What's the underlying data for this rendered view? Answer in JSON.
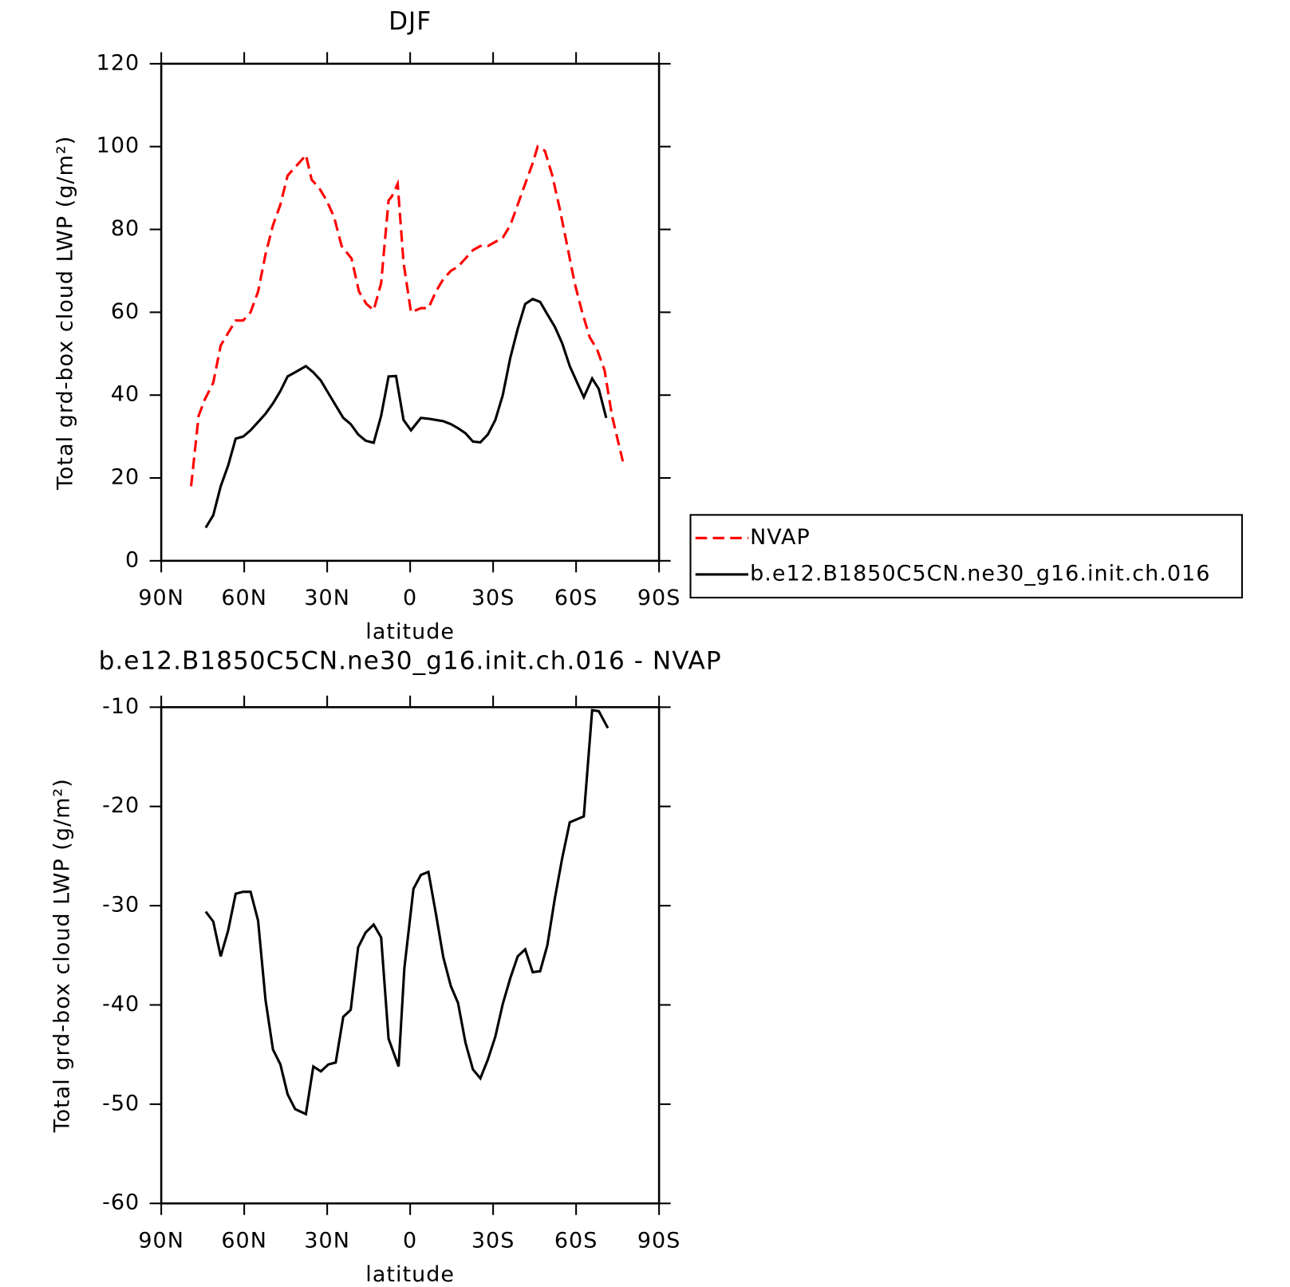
{
  "chart_data": [
    {
      "type": "line",
      "title": "DJF",
      "xlabel": "latitude",
      "ylabel": "Total grd-box cloud LWP (g/m²)",
      "xlim": [
        90,
        -90
      ],
      "xticks": [
        {
          "value": 90,
          "label": "90N"
        },
        {
          "value": 60,
          "label": "60N"
        },
        {
          "value": 30,
          "label": "30N"
        },
        0,
        {
          "value": -30,
          "label": "30S"
        },
        {
          "value": -60,
          "label": "60S"
        },
        {
          "value": -90,
          "label": "90S"
        }
      ],
      "ylim": [
        0,
        120
      ],
      "yticks": [
        0,
        20,
        40,
        60,
        80,
        100,
        120
      ],
      "legend": "right",
      "series": [
        {
          "name": "NVAP",
          "color": "#ff0000",
          "line_style": "dashed",
          "x": [
            79.2,
            76.5,
            74.2,
            71.2,
            68.5,
            65.8,
            63.1,
            60.4,
            57.7,
            55.0,
            52.3,
            49.6,
            46.9,
            44.3,
            41.6,
            38.9,
            37.7,
            35.6,
            32.9,
            30.2,
            27.5,
            24.8,
            21.2,
            18.5,
            15.8,
            13.2,
            10.5,
            7.8,
            6.6,
            4.5,
            2.4,
            -0.3,
            -3.9,
            -6.6,
            -9.3,
            -12.0,
            -14.7,
            -17.3,
            -20.0,
            -22.7,
            -25.4,
            -28.1,
            -30.8,
            -33.5,
            -36.2,
            -38.9,
            -41.6,
            -44.3,
            -46.1,
            -48.7,
            -51.4,
            -54.1,
            -56.8,
            -59.5,
            -62.2,
            -64.9,
            -67.6,
            -70.3,
            -73.0,
            -76.9
          ],
          "values": [
            18,
            35,
            39,
            43,
            52,
            55,
            58,
            58,
            60,
            65,
            74,
            81,
            86,
            93,
            95,
            97,
            98,
            92,
            90,
            87,
            83,
            76,
            73,
            65,
            62,
            60.5,
            67,
            87,
            88,
            91,
            72,
            60,
            61,
            61,
            65,
            68,
            70,
            71,
            73,
            75,
            76,
            76,
            77,
            78,
            81,
            86,
            91,
            96,
            100,
            99,
            93,
            85,
            76,
            67,
            60,
            54,
            51,
            46,
            35,
            24
          ]
        },
        {
          "name": "b.e12.B1850C5CN.ne30_g16.init.ch.016",
          "color": "#000000",
          "line_style": "solid",
          "x": [
            73.9,
            71.2,
            68.5,
            65.8,
            63.1,
            60.4,
            57.7,
            55.0,
            52.3,
            49.6,
            46.9,
            44.3,
            41.6,
            37.7,
            35.0,
            32.3,
            29.6,
            26.9,
            24.2,
            21.5,
            18.8,
            16.1,
            13.2,
            10.5,
            7.8,
            5.1,
            2.4,
            -0.3,
            -3.9,
            -6.6,
            -9.3,
            -12.0,
            -14.7,
            -17.3,
            -20.0,
            -22.7,
            -25.4,
            -28.1,
            -30.8,
            -33.5,
            -36.2,
            -38.9,
            -41.6,
            -44.3,
            -47.0,
            -49.6,
            -52.3,
            -55.0,
            -57.7,
            -60.4,
            -62.8,
            -65.8,
            -68.2,
            -70.9
          ],
          "values": [
            8,
            11,
            18,
            23,
            29.5,
            30,
            31.5,
            33.5,
            35.5,
            38,
            41,
            44.5,
            45.5,
            47,
            45.5,
            43.5,
            40.5,
            37.5,
            34.5,
            33,
            30.5,
            29,
            28.5,
            35,
            44.5,
            44.6,
            34,
            31.5,
            34.5,
            34.3,
            34,
            33.7,
            33,
            32,
            30.8,
            28.8,
            28.6,
            30.5,
            34,
            40,
            49,
            56,
            62,
            63.2,
            62.5,
            59.5,
            56.5,
            52.5,
            47,
            43,
            39.5,
            44,
            41.5,
            34.5
          ]
        }
      ]
    },
    {
      "type": "line",
      "title": "b.e12.B1850C5CN.ne30_g16.init.ch.016 - NVAP",
      "xlabel": "latitude",
      "ylabel": "Total grd-box cloud LWP (g/m²)",
      "xlim": [
        90,
        -90
      ],
      "xticks": [
        {
          "value": 90,
          "label": "90N"
        },
        {
          "value": 60,
          "label": "60N"
        },
        {
          "value": 30,
          "label": "30N"
        },
        0,
        {
          "value": -30,
          "label": "30S"
        },
        {
          "value": -60,
          "label": "60S"
        },
        {
          "value": -90,
          "label": "90S"
        }
      ],
      "ylim": [
        -60,
        -10
      ],
      "yticks": [
        -60,
        -50,
        -40,
        -30,
        -20,
        -10
      ],
      "series": [
        {
          "color": "#000000",
          "line_style": "solid",
          "x": [
            73.9,
            71.2,
            68.5,
            65.8,
            63.1,
            60.4,
            57.7,
            55.0,
            52.3,
            49.6,
            46.9,
            44.3,
            41.6,
            37.7,
            35.0,
            32.3,
            29.6,
            26.9,
            24.2,
            21.5,
            18.8,
            16.1,
            13.2,
            10.5,
            7.8,
            4.2,
            2.1,
            -1.2,
            -3.9,
            -6.6,
            -9.3,
            -12.0,
            -14.7,
            -17.3,
            -20.0,
            -22.7,
            -25.4,
            -28.1,
            -30.8,
            -33.5,
            -36.2,
            -38.9,
            -41.6,
            -44.3,
            -47.0,
            -49.6,
            -52.3,
            -55.0,
            -57.7,
            -62.8,
            -65.8,
            -68.2,
            -71.5
          ],
          "values": [
            -30.6,
            -31.6,
            -35.1,
            -32.5,
            -28.8,
            -28.6,
            -28.6,
            -31.5,
            -39.5,
            -44.5,
            -46,
            -49,
            -50.5,
            -51,
            -46.2,
            -46.7,
            -46,
            -45.8,
            -41.2,
            -40.5,
            -34.2,
            -32.7,
            -31.9,
            -33.2,
            -43.4,
            -46.2,
            -36.3,
            -28.3,
            -26.9,
            -26.6,
            -30.8,
            -35.2,
            -38.1,
            -39.8,
            -43.8,
            -46.5,
            -47.4,
            -45.5,
            -43.2,
            -39.9,
            -37.3,
            -35.1,
            -34.4,
            -36.7,
            -36.6,
            -34,
            -29.3,
            -25.2,
            -21.6,
            -21.0,
            -10.3,
            -10.4,
            -12.1
          ]
        }
      ]
    }
  ]
}
